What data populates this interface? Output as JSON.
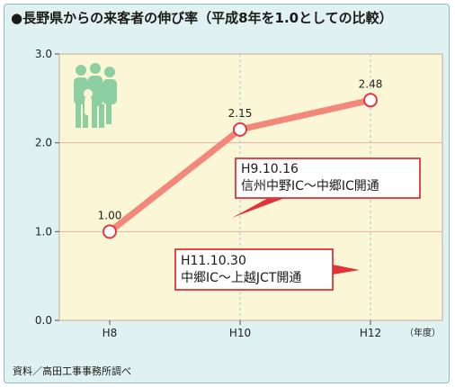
{
  "title": "●長野県からの来客者の伸び率（平成8年を1.0としての比較）",
  "source": "資料／高田工事事務所調べ",
  "chart_data": {
    "type": "line",
    "categories": [
      "H8",
      "H10",
      "H12"
    ],
    "x": [
      8,
      10,
      12
    ],
    "values": [
      1.0,
      2.15,
      2.48
    ],
    "value_labels": [
      "1.00",
      "2.15",
      "2.48"
    ],
    "ylim": [
      0,
      3
    ],
    "xlim": [
      8,
      12
    ],
    "yticks": [
      "0.0",
      "1.0",
      "2.0",
      "3.0"
    ],
    "x_unit": "（年度）",
    "grid": "horizontal",
    "colors": {
      "line": "#f2877a",
      "marker_stroke": "#e2393f",
      "plot_bg": "#fbf6d6",
      "grid": "#dcb5a6",
      "vertical_guide": "#8fcfe2",
      "callout": "#e0343a"
    },
    "annotations": [
      {
        "x": 10,
        "y": 2.15,
        "lines": [
          "H9.10.16",
          "信州中野IC〜中郷IC開通"
        ]
      },
      {
        "x": 8,
        "y": 1.0,
        "lines": [
          "H11.10.30",
          "中郷IC〜上越JCT開通"
        ]
      }
    ],
    "icon": "people-group-icon"
  }
}
